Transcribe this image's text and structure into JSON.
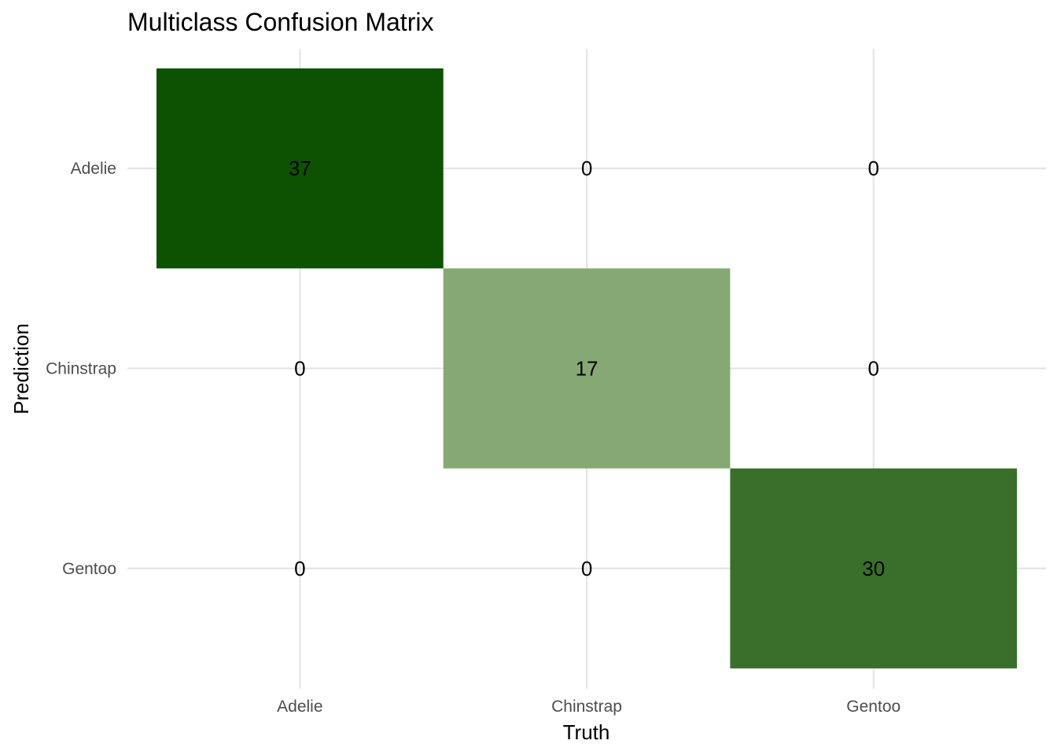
{
  "chart_data": {
    "type": "heatmap",
    "title": "Multiclass Confusion Matrix",
    "xlabel": "Truth",
    "ylabel": "Prediction",
    "x_categories": [
      "Adelie",
      "Chinstrap",
      "Gentoo"
    ],
    "y_categories": [
      "Adelie",
      "Chinstrap",
      "Gentoo"
    ],
    "cells": [
      {
        "truth": "Adelie",
        "prediction": "Adelie",
        "value": 37,
        "color": "#0c5202"
      },
      {
        "truth": "Chinstrap",
        "prediction": "Adelie",
        "value": 0,
        "color": "#ffffff"
      },
      {
        "truth": "Gentoo",
        "prediction": "Adelie",
        "value": 0,
        "color": "#ffffff"
      },
      {
        "truth": "Adelie",
        "prediction": "Chinstrap",
        "value": 0,
        "color": "#ffffff"
      },
      {
        "truth": "Chinstrap",
        "prediction": "Chinstrap",
        "value": 17,
        "color": "#86a874"
      },
      {
        "truth": "Gentoo",
        "prediction": "Chinstrap",
        "value": 0,
        "color": "#ffffff"
      },
      {
        "truth": "Adelie",
        "prediction": "Gentoo",
        "value": 0,
        "color": "#ffffff"
      },
      {
        "truth": "Chinstrap",
        "prediction": "Gentoo",
        "value": 0,
        "color": "#ffffff"
      },
      {
        "truth": "Gentoo",
        "prediction": "Gentoo",
        "value": 30,
        "color": "#3a6f2b"
      }
    ],
    "grid": true,
    "legend": "none"
  }
}
